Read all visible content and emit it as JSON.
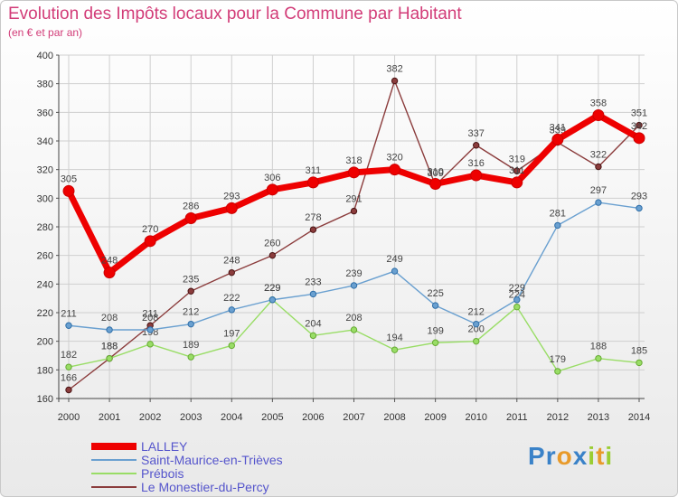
{
  "chart_data": {
    "type": "line",
    "title": "Evolution des Impôts locaux pour la Commune par Habitant",
    "subtitle": "(en € et par an)",
    "xlabel": "",
    "ylabel": "",
    "ylim": [
      160,
      400
    ],
    "yticks": [
      160,
      180,
      200,
      220,
      240,
      260,
      280,
      300,
      320,
      340,
      360,
      380,
      400
    ],
    "categories": [
      "2000",
      "2001",
      "2002",
      "2003",
      "2004",
      "2005",
      "2006",
      "2007",
      "2008",
      "2009",
      "2010",
      "2011",
      "2012",
      "2013",
      "2014"
    ],
    "grid": true,
    "legend_position": "bottom-left",
    "series": [
      {
        "name": "LALLEY",
        "color": "#ee0000",
        "values": [
          305,
          248,
          270,
          286,
          293,
          306,
          311,
          318,
          320,
          310,
          316,
          311,
          341,
          358,
          342
        ]
      },
      {
        "name": "Saint-Maurice-en-Trièves",
        "color": "#6aa0d0",
        "values": [
          211,
          208,
          208,
          212,
          222,
          229,
          233,
          239,
          249,
          225,
          212,
          229,
          281,
          297,
          293
        ]
      },
      {
        "name": "Prébois",
        "color": "#99dd66",
        "values": [
          182,
          188,
          198,
          189,
          197,
          229,
          204,
          208,
          194,
          199,
          200,
          224,
          179,
          188,
          185
        ]
      },
      {
        "name": "Le Monestier-du-Percy",
        "color": "#8b3c3c",
        "values": [
          166,
          188,
          211,
          235,
          248,
          260,
          278,
          291,
          382,
          309,
          337,
          319,
          339,
          322,
          351
        ]
      }
    ]
  },
  "brand": {
    "letters": [
      "P",
      "r",
      "o",
      "x",
      "i",
      "t",
      "i"
    ],
    "colors": [
      "#3a82c8",
      "#3a82c8",
      "#e89a2a",
      "#3a82c8",
      "#9acd32",
      "#e89a2a",
      "#9acd32"
    ]
  }
}
